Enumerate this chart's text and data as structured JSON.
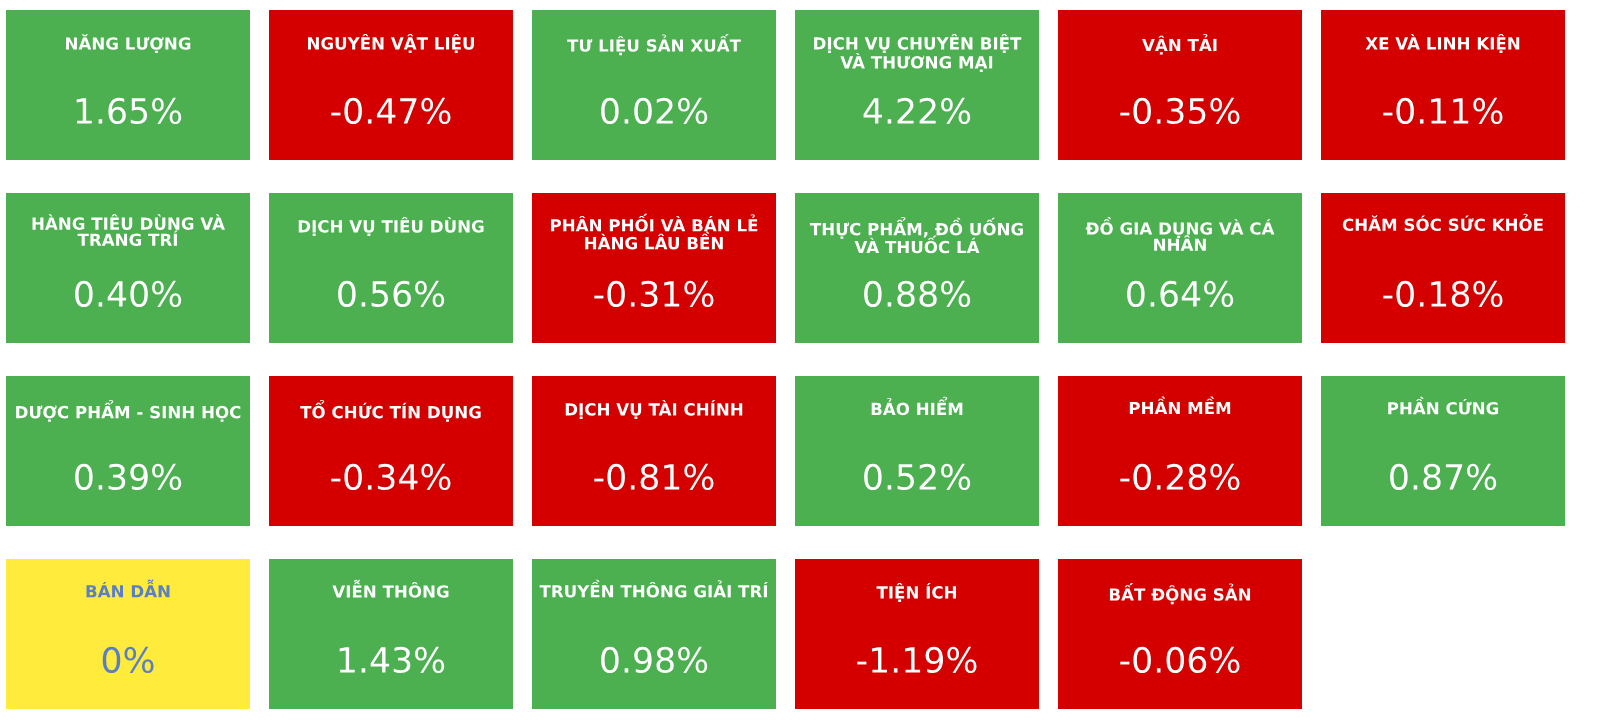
{
  "chart_data": {
    "type": "other",
    "categories": [
      "NĂNG LƯỢNG",
      "NGUYÊN VẬT LIỆU",
      "TƯ LIỆU SẢN XUẤT",
      "DỊCH VỤ CHUYÊN BIỆT\nVÀ THƯƠNG MẠI",
      "VẬN TẢI",
      "XE VÀ LINH KIỆN",
      "HÀNG TIÊU DÙNG VÀ\nTRANG TRÍ",
      "DỊCH VỤ TIÊU DÙNG",
      "PHÂN PHỐI VÀ BÁN LẺ\nHÀNG LÂU BỀN",
      "THỰC PHẨM, ĐỒ UỐNG\nVÀ THUỐC LÁ",
      "ĐỒ GIA DỤNG VÀ CÁ\nNHÂN",
      "CHĂM SÓC SỨC KHỎE",
      "DƯỢC PHẨM - SINH HỌC",
      "TỔ CHỨC TÍN DỤNG",
      "DỊCH VỤ TÀI CHÍNH",
      "BẢO HIỂM",
      "PHẦN MỀM",
      "PHẦN CỨNG",
      "BÁN DẪN",
      "VIỄN THÔNG",
      "TRUYỀN THÔNG GIẢI TRÍ",
      "TIỆN ÍCH",
      "BẤT ĐỘNG SẢN"
    ],
    "values": [
      1.65,
      -0.47,
      0.02,
      4.22,
      -0.35,
      -0.11,
      0.4,
      0.56,
      -0.31,
      0.88,
      0.64,
      -0.18,
      0.39,
      -0.34,
      -0.81,
      0.52,
      -0.28,
      0.87,
      0,
      1.43,
      0.98,
      -1.19,
      -0.06
    ],
    "value_labels": [
      "1.65%",
      "-0.47%",
      "0.02%",
      "4.22%",
      "-0.35%",
      "-0.11%",
      "0.40%",
      "0.56%",
      "-0.31%",
      "0.88%",
      "0.64%",
      "-0.18%",
      "0.39%",
      "-0.34%",
      "-0.81%",
      "0.52%",
      "-0.28%",
      "0.87%",
      "0%",
      "1.43%",
      "0.98%",
      "-1.19%",
      "-0.06%"
    ]
  }
}
